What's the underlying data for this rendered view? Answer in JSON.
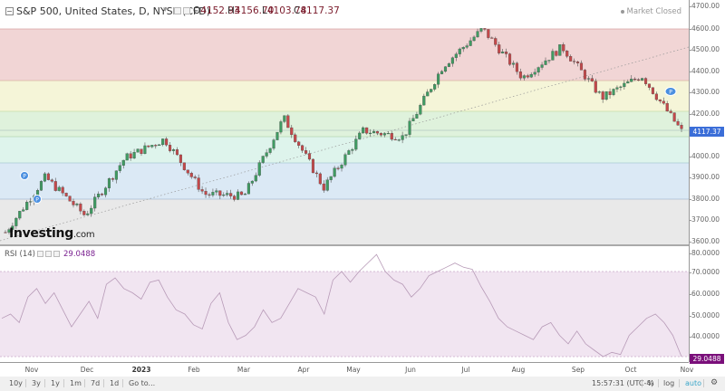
{
  "header": {
    "title": "S&P 500, United States, D, NYSE (CFD)",
    "open_label": "O",
    "open": "4152.93",
    "high_label": "H",
    "high": "4156.70",
    "low_label": "L",
    "low": "4103.78",
    "close_label": "C",
    "close": "4117.37",
    "market_status": "Market Closed"
  },
  "price_axis": {
    "ticks": [
      "4700.00",
      "4600.00",
      "4500.00",
      "4400.00",
      "4300.00",
      "4200.00",
      "4100.00",
      "4000.00",
      "3900.00",
      "3800.00",
      "3700.00",
      "3600.00"
    ],
    "last_price": "4117.37"
  },
  "watermark": {
    "brand": "Investing",
    "suffix": ".com"
  },
  "rsi": {
    "label": "RSI (14)",
    "value": "29.0488",
    "ticks": [
      "80.0000",
      "70.0000",
      "60.0000",
      "50.0000",
      "40.0000"
    ],
    "last_value": "29.0488"
  },
  "time_axis": {
    "labels": [
      "Nov",
      "Dec",
      "2023",
      "Feb",
      "Mar",
      "Apr",
      "May",
      "Jun",
      "Jul",
      "Aug",
      "Sep",
      "Oct",
      "Nov"
    ]
  },
  "bottom_bar": {
    "ranges": [
      "10y",
      "3y",
      "1y",
      "1m",
      "7d",
      "1d",
      "Go to..."
    ],
    "clock": "15:57:31 (UTC-4)",
    "percent": "%",
    "log": "log",
    "auto": "auto"
  },
  "colors": {
    "up": "#3f9b62",
    "down": "#c4484a",
    "band_red": "#f1d5d5",
    "band_yellow": "#f5f5d8",
    "band_green": "#dff2dc",
    "band_cyan": "#def4ec",
    "band_blue": "#dbe9f5",
    "band_gray": "#e9e9e9",
    "rsi_fill": "#f1e5f1",
    "rsi_line": "#b79ab7",
    "last_price": "#3b6ed8",
    "rsi_last": "#7a0f7a"
  },
  "chart_data": [
    {
      "type": "candlestick",
      "title": "S&P 500, United States, D, NYSE (CFD)",
      "ylim": [
        3600,
        4700
      ],
      "x_range": [
        "Oct 2022",
        "Nov 2023"
      ],
      "xlabels": [
        "Nov",
        "Dec",
        "2023",
        "Feb",
        "Mar",
        "Apr",
        "May",
        "Jun",
        "Jul",
        "Aug",
        "Sep",
        "Oct",
        "Nov"
      ],
      "ohlc_last": {
        "open": 4152.93,
        "high": 4156.7,
        "low": 4103.78,
        "close": 4117.37
      },
      "approx_close_path": [
        {
          "x": "Oct 13 2022",
          "y": 3640
        },
        {
          "x": "Oct 28 2022",
          "y": 3900
        },
        {
          "x": "Nov 3 2022",
          "y": 3720
        },
        {
          "x": "Nov 15 2022",
          "y": 3990
        },
        {
          "x": "Dec 1 2022",
          "y": 4080
        },
        {
          "x": "Dec 22 2022",
          "y": 3820
        },
        {
          "x": "Jan 5 2023",
          "y": 3810
        },
        {
          "x": "Feb 2 2023",
          "y": 4180
        },
        {
          "x": "Mar 13 2023",
          "y": 3850
        },
        {
          "x": "Apr 3 2023",
          "y": 4120
        },
        {
          "x": "May 3 2023",
          "y": 4090
        },
        {
          "x": "Jun 15 2023",
          "y": 4425
        },
        {
          "x": "Jul 27 2023",
          "y": 4600
        },
        {
          "x": "Aug 18 2023",
          "y": 4370
        },
        {
          "x": "Sep 1 2023",
          "y": 4515
        },
        {
          "x": "Sep 27 2023",
          "y": 4275
        },
        {
          "x": "Oct 12 2023",
          "y": 4380
        },
        {
          "x": "Oct 27 2023",
          "y": 4117
        }
      ],
      "fibonacci_levels": [
        4600,
        4356,
        4210,
        4150,
        3960,
        3796
      ],
      "trendline": {
        "from": {
          "x": "Oct 2022",
          "y": 3600
        },
        "to": {
          "x": "Nov 2023",
          "y": 4510
        },
        "style": "dotted"
      }
    },
    {
      "type": "line",
      "title": "RSI (14)",
      "ylim": [
        28,
        82
      ],
      "reference_lines": [
        70,
        30
      ],
      "last_value": 29.0488,
      "approx_values": [
        48,
        50,
        46,
        58,
        62,
        55,
        60,
        52,
        44,
        50,
        56,
        48,
        64,
        67,
        62,
        60,
        57,
        65,
        66,
        58,
        52,
        50,
        45,
        43,
        55,
        60,
        46,
        38,
        40,
        44,
        52,
        46,
        48,
        55,
        62,
        60,
        58,
        50,
        66,
        70,
        65,
        70,
        74,
        78,
        70,
        66,
        64,
        58,
        62,
        68,
        70,
        72,
        74,
        72,
        71,
        63,
        56,
        48,
        44,
        42,
        40,
        38,
        44,
        46,
        40,
        36,
        42,
        36,
        33,
        30,
        32,
        31,
        40,
        44,
        48,
        50,
        46,
        40,
        30
      ]
    }
  ]
}
